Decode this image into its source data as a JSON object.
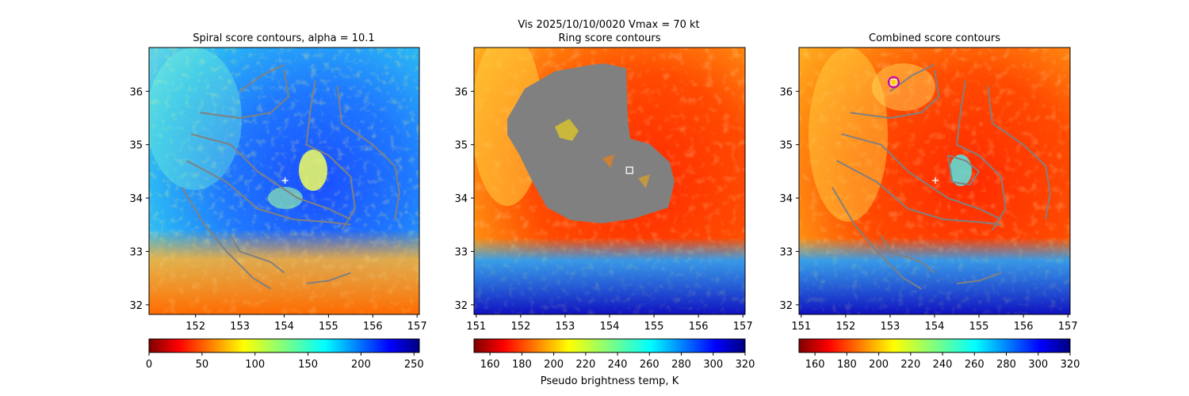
{
  "figure": {
    "suptitle_line1": "Vis  2025/10/10/0020    Vmax = 70 kt"
  },
  "chart_data": [
    {
      "type": "heatmap",
      "title": "Spiral score contours, alpha = 10.1",
      "x_ticks": [
        152,
        153,
        154,
        155,
        156,
        157
      ],
      "y_ticks": [
        32,
        33,
        34,
        35,
        36
      ],
      "xlim": [
        150.95,
        157.05
      ],
      "ylim": [
        31.82,
        36.82
      ],
      "colormap": "jet_r",
      "colorbar": {
        "ticks": [
          0,
          50,
          100,
          150,
          200,
          250
        ],
        "range": [
          0,
          255
        ],
        "label": ""
      },
      "center_marker": {
        "symbol": "+",
        "lon": 154.02,
        "lat": 34.33
      },
      "contours": [
        [
          [
            153.0,
            36.0
          ],
          [
            153.5,
            36.3
          ],
          [
            154.0,
            36.5
          ]
        ],
        [
          [
            152.1,
            35.6
          ],
          [
            153.0,
            35.5
          ],
          [
            153.7,
            35.6
          ],
          [
            154.1,
            35.9
          ],
          [
            154.0,
            36.4
          ]
        ],
        [
          [
            151.9,
            35.2
          ],
          [
            152.8,
            35.0
          ],
          [
            153.4,
            34.5
          ],
          [
            154.3,
            34.0
          ],
          [
            155.0,
            33.8
          ],
          [
            155.5,
            33.6
          ]
        ],
        [
          [
            151.8,
            34.7
          ],
          [
            152.7,
            34.3
          ],
          [
            153.4,
            33.8
          ],
          [
            154.2,
            33.6
          ],
          [
            155.0,
            33.55
          ],
          [
            155.5,
            33.5
          ]
        ],
        [
          [
            151.7,
            34.2
          ],
          [
            152.2,
            33.5
          ],
          [
            152.7,
            33.0
          ],
          [
            153.3,
            32.5
          ],
          [
            153.7,
            32.3
          ]
        ],
        [
          [
            154.7,
            36.2
          ],
          [
            154.6,
            35.7
          ],
          [
            154.5,
            35.0
          ],
          [
            155.0,
            34.8
          ],
          [
            155.5,
            34.4
          ],
          [
            155.6,
            33.8
          ],
          [
            155.3,
            33.4
          ]
        ],
        [
          [
            155.2,
            36.1
          ],
          [
            155.3,
            35.4
          ],
          [
            156.0,
            35.0
          ],
          [
            156.5,
            34.6
          ],
          [
            156.6,
            34.1
          ],
          [
            156.5,
            33.6
          ]
        ],
        [
          [
            152.8,
            33.3
          ],
          [
            153.0,
            33.0
          ],
          [
            153.7,
            32.8
          ],
          [
            154.0,
            32.6
          ]
        ],
        [
          [
            154.5,
            32.4
          ],
          [
            155.0,
            32.45
          ],
          [
            155.5,
            32.6
          ]
        ]
      ]
    },
    {
      "type": "heatmap",
      "title": "Ring score contours",
      "x_ticks": [
        151,
        152,
        153,
        154,
        155,
        156,
        157
      ],
      "y_ticks": [
        32,
        33,
        34,
        35,
        36
      ],
      "xlim": [
        150.95,
        157.05
      ],
      "ylim": [
        31.82,
        36.82
      ],
      "colormap": "jet_r",
      "colorbar": {
        "ticks": [
          160,
          180,
          200,
          220,
          240,
          260,
          280,
          300,
          320
        ],
        "range": [
          150,
          320
        ],
        "label": "Pseudo brightness temp, K"
      },
      "center_marker": {
        "symbol": "square",
        "lon": 154.45,
        "lat": 34.52
      },
      "masked_region_color": "#808080"
    },
    {
      "type": "heatmap",
      "title": "Combined score contours",
      "x_ticks": [
        151,
        152,
        153,
        154,
        155,
        156,
        157
      ],
      "y_ticks": [
        32,
        33,
        34,
        35,
        36
      ],
      "xlim": [
        150.95,
        157.05
      ],
      "ylim": [
        31.82,
        36.82
      ],
      "colormap": "jet_r",
      "colorbar": {
        "ticks": [
          160,
          180,
          200,
          220,
          240,
          260,
          280,
          300,
          320
        ],
        "range": [
          150,
          320
        ],
        "label": ""
      },
      "center_marker": {
        "symbol": "+",
        "lon": 154.02,
        "lat": 34.33
      },
      "best_point": {
        "lon": 153.08,
        "lat": 36.17
      },
      "contours": [
        [
          [
            153.0,
            36.0
          ],
          [
            153.5,
            36.3
          ],
          [
            154.0,
            36.5
          ]
        ],
        [
          [
            152.1,
            35.6
          ],
          [
            153.0,
            35.5
          ],
          [
            153.7,
            35.6
          ],
          [
            154.1,
            35.9
          ],
          [
            154.0,
            36.4
          ]
        ],
        [
          [
            151.9,
            35.2
          ],
          [
            152.8,
            35.0
          ],
          [
            153.4,
            34.5
          ],
          [
            154.3,
            34.0
          ],
          [
            155.0,
            33.8
          ],
          [
            155.5,
            33.6
          ]
        ],
        [
          [
            151.8,
            34.7
          ],
          [
            152.7,
            34.3
          ],
          [
            153.4,
            33.8
          ],
          [
            154.2,
            33.6
          ],
          [
            155.0,
            33.55
          ],
          [
            155.5,
            33.5
          ]
        ],
        [
          [
            151.7,
            34.2
          ],
          [
            152.2,
            33.5
          ],
          [
            152.7,
            33.0
          ],
          [
            153.3,
            32.5
          ],
          [
            153.7,
            32.3
          ]
        ],
        [
          [
            154.7,
            36.2
          ],
          [
            154.6,
            35.7
          ],
          [
            154.5,
            35.0
          ],
          [
            155.0,
            34.8
          ],
          [
            155.5,
            34.4
          ],
          [
            155.6,
            33.8
          ],
          [
            155.3,
            33.4
          ]
        ],
        [
          [
            155.2,
            36.1
          ],
          [
            155.3,
            35.4
          ],
          [
            156.0,
            35.0
          ],
          [
            156.5,
            34.6
          ],
          [
            156.6,
            34.1
          ],
          [
            156.5,
            33.6
          ]
        ],
        [
          [
            152.8,
            33.3
          ],
          [
            153.0,
            33.0
          ],
          [
            153.7,
            32.8
          ],
          [
            154.0,
            32.6
          ]
        ],
        [
          [
            154.5,
            32.4
          ],
          [
            155.0,
            32.45
          ],
          [
            155.5,
            32.6
          ]
        ],
        [
          [
            154.3,
            34.8
          ],
          [
            154.7,
            34.7
          ],
          [
            155.0,
            34.5
          ],
          [
            154.8,
            34.25
          ],
          [
            154.4,
            34.3
          ],
          [
            154.3,
            34.8
          ]
        ]
      ]
    }
  ]
}
